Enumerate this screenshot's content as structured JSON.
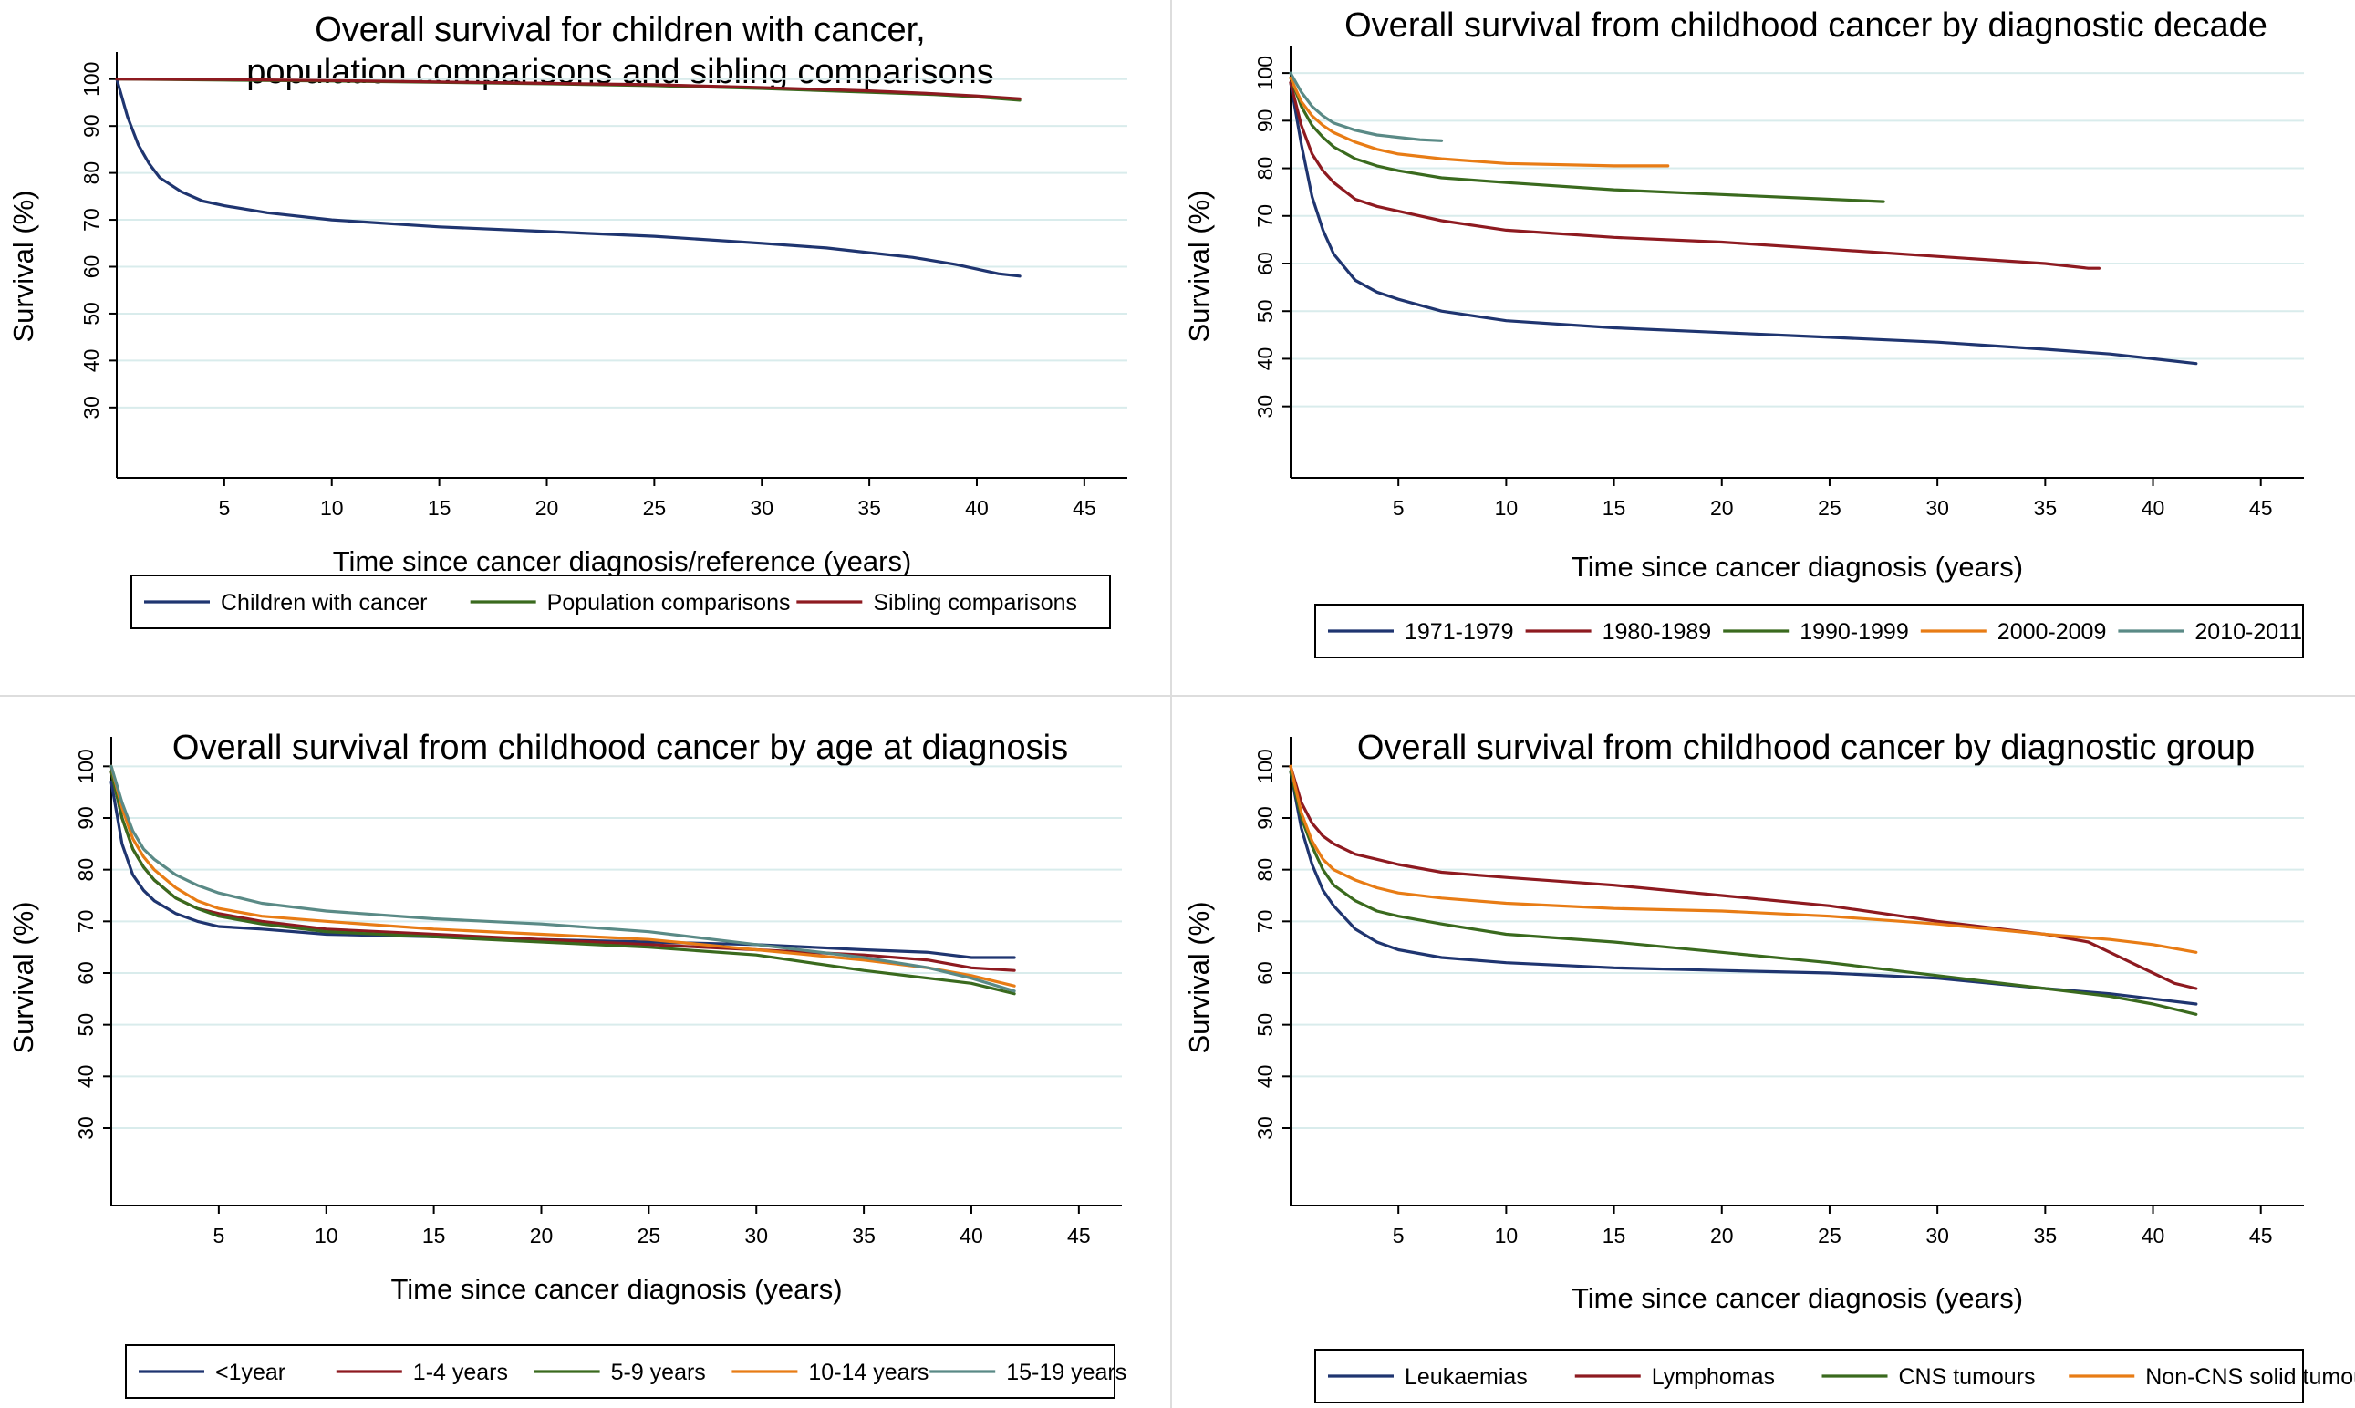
{
  "colors": {
    "navy": "#1f3570",
    "darkred": "#8e1a20",
    "green": "#3a6a1e",
    "orange": "#e87c15",
    "teal": "#5a8a86",
    "grid": "#d9ecec"
  },
  "chart_data": [
    {
      "id": "p1",
      "type": "line",
      "title": [
        "Overall survival for children with cancer,",
        "population comparisons and sibling comparisons"
      ],
      "xlabel": "Time since cancer diagnosis/reference (years)",
      "ylabel": "Survival (%)",
      "xlim": [
        0,
        47
      ],
      "ylim": [
        15,
        105
      ],
      "xticks": [
        5,
        10,
        15,
        20,
        25,
        30,
        35,
        40,
        45
      ],
      "yticks": [
        30,
        40,
        50,
        60,
        70,
        80,
        90,
        100
      ],
      "grid": true,
      "legend": {
        "position": "bottom",
        "entries": [
          "Children with cancer",
          "Population comparisons",
          "Sibling comparisons"
        ]
      },
      "series": [
        {
          "name": "Children with cancer",
          "color": "navy",
          "x": [
            0,
            0.5,
            1,
            1.5,
            2,
            3,
            4,
            5,
            7,
            10,
            15,
            20,
            25,
            30,
            33,
            35,
            37,
            39,
            40,
            41,
            42
          ],
          "y": [
            100,
            92,
            86,
            82,
            79,
            76,
            74,
            73,
            71.5,
            70,
            68.5,
            67.5,
            66.5,
            65,
            64,
            63,
            62,
            60.5,
            59.5,
            58.5,
            58
          ]
        },
        {
          "name": "Population comparisons",
          "color": "green",
          "x": [
            0,
            5,
            10,
            15,
            20,
            25,
            30,
            35,
            38,
            40,
            42
          ],
          "y": [
            100,
            99.8,
            99.6,
            99.3,
            99,
            98.6,
            98,
            97.2,
            96.7,
            96.2,
            95.5
          ]
        },
        {
          "name": "Sibling comparisons",
          "color": "darkred",
          "x": [
            0,
            5,
            10,
            15,
            20,
            25,
            30,
            35,
            38,
            40,
            42
          ],
          "y": [
            100,
            99.9,
            99.7,
            99.4,
            99.1,
            98.8,
            98.2,
            97.5,
            96.9,
            96.4,
            95.8
          ]
        }
      ]
    },
    {
      "id": "p2",
      "type": "line",
      "title": [
        "Overall survival from childhood cancer by diagnostic decade"
      ],
      "xlabel": "Time since cancer diagnosis (years)",
      "ylabel": "Survival (%)",
      "xlim": [
        0,
        47
      ],
      "ylim": [
        15,
        105
      ],
      "xticks": [
        5,
        10,
        15,
        20,
        25,
        30,
        35,
        40,
        45
      ],
      "yticks": [
        30,
        40,
        50,
        60,
        70,
        80,
        90,
        100
      ],
      "grid": true,
      "legend": {
        "position": "bottom",
        "entries": [
          "1971-1979",
          "1980-1989",
          "1990-1999",
          "2000-2009",
          "2010-2011"
        ]
      },
      "series": [
        {
          "name": "1971-1979",
          "color": "navy",
          "x": [
            0,
            0.5,
            1,
            1.5,
            2,
            3,
            4,
            5,
            7,
            10,
            15,
            20,
            25,
            30,
            35,
            38,
            40,
            42
          ],
          "y": [
            98,
            85,
            74,
            67,
            62,
            56.5,
            54,
            52.5,
            50,
            48,
            46.5,
            45.5,
            44.5,
            43.5,
            42,
            41,
            40,
            39
          ]
        },
        {
          "name": "1980-1989",
          "color": "darkred",
          "x": [
            0,
            0.5,
            1,
            1.5,
            2,
            3,
            4,
            5,
            7,
            10,
            15,
            20,
            25,
            30,
            35,
            37,
            37.5
          ],
          "y": [
            98,
            89,
            83,
            79.5,
            77,
            73.5,
            72,
            71,
            69,
            67,
            65.5,
            64.5,
            63,
            61.5,
            60,
            59,
            59
          ]
        },
        {
          "name": "1990-1999",
          "color": "green",
          "x": [
            0,
            0.5,
            1,
            1.5,
            2,
            3,
            4,
            5,
            7,
            10,
            15,
            20,
            25,
            27.5
          ],
          "y": [
            99,
            93,
            89,
            86.5,
            84.5,
            82,
            80.5,
            79.5,
            78,
            77,
            75.5,
            74.5,
            73.5,
            73
          ]
        },
        {
          "name": "2000-2009",
          "color": "orange",
          "x": [
            0,
            0.5,
            1,
            1.5,
            2,
            3,
            4,
            5,
            7,
            10,
            15,
            17.5
          ],
          "y": [
            99,
            94,
            91,
            89,
            87.5,
            85.5,
            84,
            83,
            82,
            81,
            80.5,
            80.5
          ]
        },
        {
          "name": "2010-2011",
          "color": "teal",
          "x": [
            0,
            0.5,
            1,
            1.5,
            2,
            3,
            4,
            5,
            6,
            7
          ],
          "y": [
            100,
            96,
            93,
            91,
            89.5,
            88,
            87,
            86.5,
            86,
            85.8
          ]
        }
      ]
    },
    {
      "id": "p3",
      "type": "line",
      "title": [
        "Overall survival from childhood cancer by age at diagnosis"
      ],
      "xlabel": "Time since cancer diagnosis (years)",
      "ylabel": "Survival (%)",
      "xlim": [
        0,
        47
      ],
      "ylim": [
        15,
        105
      ],
      "xticks": [
        5,
        10,
        15,
        20,
        25,
        30,
        35,
        40,
        45
      ],
      "yticks": [
        30,
        40,
        50,
        60,
        70,
        80,
        90,
        100
      ],
      "grid": true,
      "legend": {
        "position": "bottom",
        "entries": [
          "<1year",
          "1-4 years",
          "5-9 years",
          "10-14 years",
          "15-19 years"
        ]
      },
      "series": [
        {
          "name": "<1year",
          "color": "navy",
          "x": [
            0,
            0.5,
            1,
            1.5,
            2,
            3,
            4,
            5,
            7,
            10,
            15,
            20,
            25,
            30,
            35,
            38,
            40,
            42
          ],
          "y": [
            97,
            85,
            79,
            76,
            74,
            71.5,
            70,
            69,
            68.5,
            67.5,
            67,
            66.5,
            66,
            65.5,
            64.5,
            64,
            63,
            63
          ]
        },
        {
          "name": "1-4 years",
          "color": "darkred",
          "x": [
            0,
            0.5,
            1,
            1.5,
            2,
            3,
            4,
            5,
            7,
            10,
            15,
            20,
            25,
            30,
            35,
            38,
            40,
            42
          ],
          "y": [
            99,
            90,
            84,
            80.5,
            78,
            74.5,
            72.5,
            71.5,
            70,
            68.5,
            67.5,
            66.5,
            65.5,
            64.5,
            63.5,
            62.5,
            61,
            60.5
          ]
        },
        {
          "name": "5-9 years",
          "color": "green",
          "x": [
            0,
            0.5,
            1,
            1.5,
            2,
            3,
            4,
            5,
            7,
            10,
            15,
            20,
            25,
            30,
            35,
            38,
            40,
            42
          ],
          "y": [
            99,
            90,
            84,
            80.5,
            78,
            74.5,
            72.5,
            71,
            69.5,
            68,
            67,
            66,
            65,
            63.5,
            60.5,
            59,
            58,
            56
          ]
        },
        {
          "name": "10-14 years",
          "color": "orange",
          "x": [
            0,
            0.5,
            1,
            1.5,
            2,
            3,
            4,
            5,
            7,
            10,
            15,
            20,
            25,
            30,
            35,
            38,
            40,
            42
          ],
          "y": [
            100,
            92,
            86,
            82.5,
            80,
            76.5,
            74,
            72.5,
            71,
            70,
            68.5,
            67.5,
            66.5,
            64.5,
            62.5,
            61,
            59.5,
            57.5
          ]
        },
        {
          "name": "15-19 years",
          "color": "teal",
          "x": [
            0,
            0.5,
            1,
            1.5,
            2,
            3,
            4,
            5,
            7,
            10,
            15,
            20,
            25,
            30,
            35,
            38,
            40,
            42
          ],
          "y": [
            100,
            93,
            87.5,
            84,
            82,
            79,
            77,
            75.5,
            73.5,
            72,
            70.5,
            69.5,
            68,
            65.5,
            63,
            61,
            59,
            56.5
          ]
        }
      ]
    },
    {
      "id": "p4",
      "type": "line",
      "title": [
        "Overall survival from childhood cancer by diagnostic group"
      ],
      "xlabel": "Time since cancer diagnosis (years)",
      "ylabel": "Survival (%)",
      "xlim": [
        0,
        47
      ],
      "ylim": [
        15,
        105
      ],
      "xticks": [
        5,
        10,
        15,
        20,
        25,
        30,
        35,
        40,
        45
      ],
      "yticks": [
        30,
        40,
        50,
        60,
        70,
        80,
        90,
        100
      ],
      "grid": true,
      "legend": {
        "position": "bottom",
        "entries": [
          "Leukaemias",
          "Lymphomas",
          "CNS tumours",
          "Non-CNS solid tumours"
        ]
      },
      "series": [
        {
          "name": "Leukaemias",
          "color": "navy",
          "x": [
            0,
            0.5,
            1,
            1.5,
            2,
            3,
            4,
            5,
            7,
            10,
            15,
            20,
            25,
            30,
            35,
            38,
            40,
            42
          ],
          "y": [
            99,
            88,
            81,
            76,
            73,
            68.5,
            66,
            64.5,
            63,
            62,
            61,
            60.5,
            60,
            59,
            57,
            56,
            55,
            54
          ]
        },
        {
          "name": "Lymphomas",
          "color": "darkred",
          "x": [
            0,
            0.5,
            1,
            1.5,
            2,
            3,
            4,
            5,
            7,
            10,
            15,
            20,
            25,
            30,
            33,
            35,
            37,
            38,
            39,
            40,
            41,
            42
          ],
          "y": [
            100,
            93,
            89,
            86.5,
            85,
            83,
            82,
            81,
            79.5,
            78.5,
            77,
            75,
            73,
            70,
            68.5,
            67.5,
            66,
            64,
            62,
            60,
            58,
            57
          ]
        },
        {
          "name": "CNS tumours",
          "color": "green",
          "x": [
            0,
            0.5,
            1,
            1.5,
            2,
            3,
            4,
            5,
            7,
            10,
            15,
            20,
            25,
            30,
            35,
            38,
            40,
            42
          ],
          "y": [
            99,
            90,
            84.5,
            80,
            77,
            74,
            72,
            71,
            69.5,
            67.5,
            66,
            64,
            62,
            59.5,
            57,
            55.5,
            54,
            52
          ]
        },
        {
          "name": "Non-CNS solid tumours",
          "color": "orange",
          "x": [
            0,
            0.5,
            1,
            1.5,
            2,
            3,
            4,
            5,
            7,
            10,
            15,
            20,
            25,
            30,
            35,
            38,
            40,
            42
          ],
          "y": [
            100,
            91,
            85.5,
            82,
            80,
            78,
            76.5,
            75.5,
            74.5,
            73.5,
            72.5,
            72,
            71,
            69.5,
            67.5,
            66.5,
            65.5,
            64
          ]
        }
      ]
    }
  ]
}
